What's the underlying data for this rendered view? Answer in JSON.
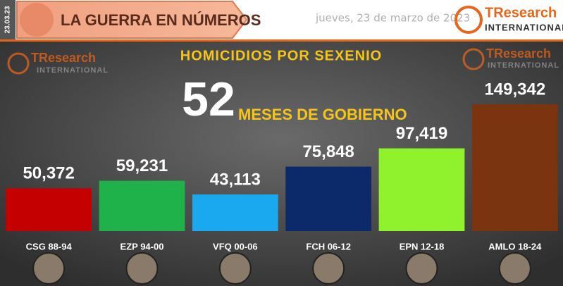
{
  "header": {
    "title": "LA GUERRA EN NÚMEROS",
    "date": "jueves, 23 de marzo de 2023",
    "side_date": "23.03.23",
    "logo": {
      "name": "TResearch",
      "sub": "INTERNATIONAL"
    }
  },
  "chart_data": {
    "type": "bar",
    "title": "HOMICIDIOS POR SEXENIO",
    "annotation": {
      "number": "52",
      "text": "MESES DE GOBIERNO"
    },
    "categories": [
      "CSG 88-94",
      "EZP 94-00",
      "VFQ 00-06",
      "FCH 06-12",
      "EPN 12-18",
      "AMLO 18-24"
    ],
    "values": [
      50372,
      59231,
      43113,
      75848,
      97419,
      149342
    ],
    "value_labels": [
      "50,372",
      "59,231",
      "43,113",
      "75,848",
      "97,419",
      "149,342"
    ],
    "colors": [
      "#c40000",
      "#1fb24a",
      "#1aa9ee",
      "#0c2a6a",
      "#8ff22d",
      "#7a3410"
    ]
  }
}
